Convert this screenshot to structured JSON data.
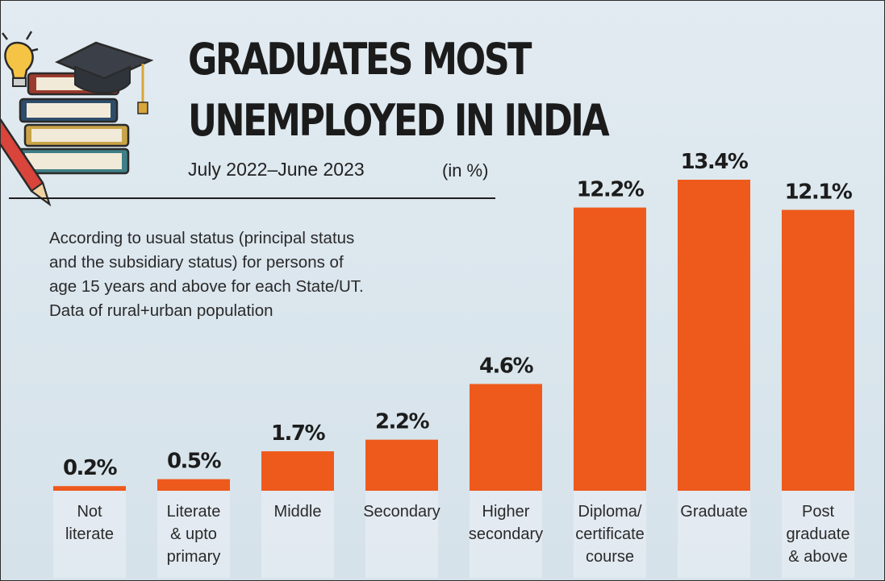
{
  "header": {
    "title_line1": "GRADUATES MOST",
    "title_line2": "UNEMPLOYED IN INDIA",
    "subtitle": "July 2022–June 2023",
    "units": "(in %)"
  },
  "note": {
    "lines": [
      "According to usual status (principal status",
      "and the subsidiary status) for persons of",
      "age 15 years and above for each State/UT.",
      "Data of rural+urban population"
    ]
  },
  "decoration": {
    "icons": [
      "lightbulb-icon",
      "books-stack-icon",
      "graduation-cap-icon",
      "pencil-icon"
    ]
  },
  "colors": {
    "bar": "#ee5a1c",
    "background": "#dce7ee",
    "text": "#1b1b1b"
  },
  "chart_data": {
    "type": "bar",
    "title": "GRADUATES MOST UNEMPLOYED IN INDIA",
    "subtitle": "July 2022–June 2023",
    "units": "(in %)",
    "categories": [
      [
        "Not",
        "literate"
      ],
      [
        "Literate",
        "& upto",
        "primary"
      ],
      [
        "Middle"
      ],
      [
        "Secondary"
      ],
      [
        "Higher",
        "secondary"
      ],
      [
        "Diploma/",
        "certificate",
        "course"
      ],
      [
        "Graduate"
      ],
      [
        "Post",
        "graduate",
        "& above"
      ]
    ],
    "values": [
      0.2,
      0.5,
      1.7,
      2.2,
      4.6,
      12.2,
      13.4,
      12.1
    ],
    "value_labels": [
      "0.2%",
      "0.5%",
      "1.7%",
      "2.2%",
      "4.6%",
      "12.2%",
      "13.4%",
      "12.1%"
    ],
    "xlabel": "",
    "ylabel": "",
    "ylim": [
      0,
      13.4
    ],
    "grid": false,
    "legend": "none"
  }
}
